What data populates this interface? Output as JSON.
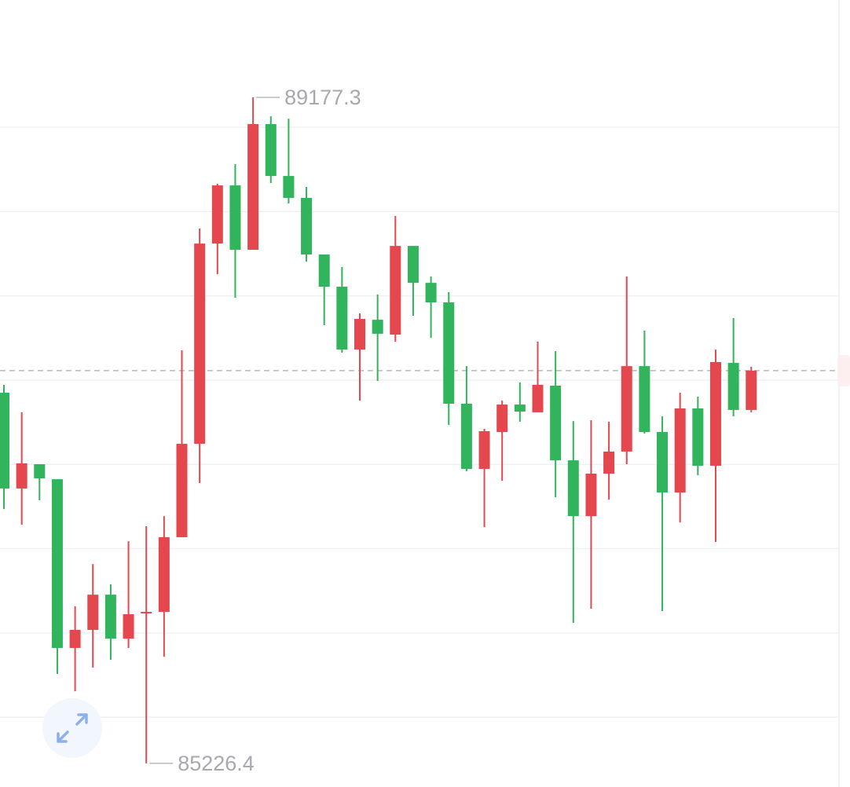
{
  "chart_data": {
    "type": "candlestick",
    "up_color": "#e5474f",
    "down_color": "#31b45b",
    "ylim": [
      85086,
      89755
    ],
    "grid_lines": [
      89000,
      88500,
      88000,
      87500,
      87000,
      86500,
      86000,
      85500
    ],
    "last_price_line": true,
    "open": [
      87425,
      86857,
      87001,
      86912,
      85911,
      86018,
      86227,
      85966,
      86116,
      86125,
      86568,
      87122,
      88310,
      88655,
      88273,
      89019,
      88711,
      88581,
      88245,
      88054,
      87681,
      87858,
      87770,
      88296,
      88077,
      87961,
      87360,
      86973,
      87192,
      87355,
      87309,
      87467,
      87024,
      86693,
      86945,
      87076,
      87583,
      87192,
      86833,
      87332,
      86992,
      87602,
      87323
    ],
    "high": [
      87472,
      87309,
      87001,
      86912,
      86158,
      86409,
      86288,
      86544,
      86633,
      86693,
      87677,
      88399,
      88665,
      88781,
      89177.3,
      89065,
      89051,
      88646,
      88245,
      88171,
      87896,
      88008,
      88474,
      88296,
      88115,
      88022,
      87583,
      87211,
      87378,
      87486,
      87728,
      87672,
      87257,
      87262,
      87253,
      88115,
      87793,
      87285,
      87425,
      87402,
      87681,
      87868,
      87579
    ],
    "low": [
      86735,
      86642,
      86787,
      85757,
      85654,
      85794,
      85841,
      85911,
      85226.4,
      85859,
      86568,
      86889,
      88129,
      87989,
      88273,
      88669,
      88548,
      88203,
      87826,
      87663,
      87378,
      87495,
      87728,
      87882,
      87751,
      87234,
      86959,
      86628,
      86903,
      87253,
      87309,
      86805,
      86060,
      86144,
      86791,
      87001,
      87183,
      86130,
      86656,
      86936,
      86540,
      87285,
      87309
    ],
    "close": [
      86857,
      87006,
      86917,
      85911,
      86018,
      86227,
      85966,
      86111,
      86125,
      86568,
      87122,
      88310,
      88655,
      88273,
      89019,
      88711,
      88581,
      88245,
      88054,
      87681,
      87863,
      87775,
      88296,
      88077,
      87961,
      87360,
      86973,
      87197,
      87355,
      87313,
      87472,
      87024,
      86693,
      86945,
      87076,
      87583,
      87192,
      86833,
      87332,
      86992,
      87607,
      87323,
      87556
    ]
  }
}
